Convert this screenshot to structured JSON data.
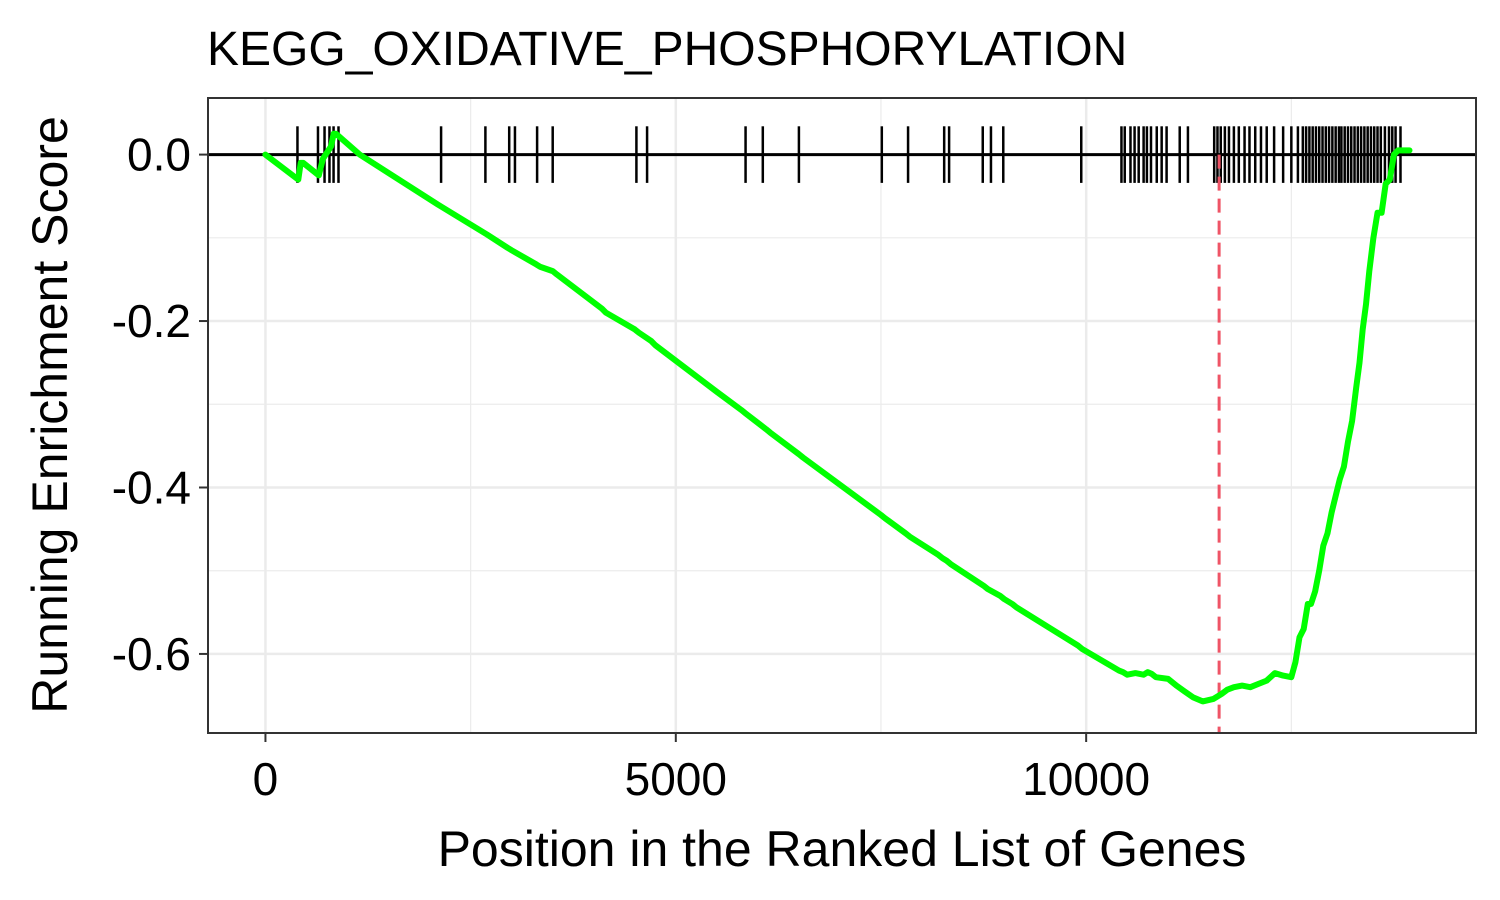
{
  "chart_data": {
    "type": "line",
    "title": "KEGG_OXIDATIVE_PHOSPHORYLATION",
    "xlabel": "Position in the Ranked List of Genes",
    "ylabel": "Running Enrichment Score",
    "xlim": [
      -700,
      14750
    ],
    "ylim": [
      -0.695,
      0.068
    ],
    "x_ticks": [
      0,
      5000,
      10000
    ],
    "x_tick_labels": [
      "0",
      "5000",
      "10000"
    ],
    "y_ticks": [
      0.0,
      -0.2,
      -0.4,
      -0.6
    ],
    "y_tick_labels": [
      "0.0",
      "-0.2",
      "-0.4",
      "-0.6"
    ],
    "grid": true,
    "colors": {
      "curve": "#00ff00",
      "hits": "#000000",
      "zero_line": "#000000",
      "peak_line": "#ef5466",
      "grid": "#ebebeb",
      "panel_border": "#333333"
    },
    "series": [
      {
        "x": [
          0,
          400,
          430,
          460,
          650,
          700,
          800,
          830,
          860,
          1150,
          2100,
          2150,
          2650,
          2700,
          2950,
          3000,
          3300,
          3350,
          3500,
          3550,
          4100,
          4150,
          4500,
          4550,
          4700,
          4750,
          5500,
          5800,
          5850,
          6100,
          6150,
          6500,
          6550,
          7500,
          7550,
          7800,
          7850,
          8200,
          8250,
          8300,
          8350,
          8750,
          8800,
          8950,
          9000,
          9100,
          9150,
          9900,
          9950,
          10400,
          10450,
          10500,
          10600,
          10700,
          10750,
          10800,
          10850,
          11000,
          11100,
          11200,
          11300,
          11420,
          11550,
          11650,
          11720,
          11800,
          11900,
          12000,
          12100,
          12200,
          12300,
          12400,
          12500,
          12550,
          12600,
          12650,
          12700,
          12740,
          12790,
          12840,
          12890,
          12940,
          12990,
          13040,
          13090,
          13140,
          13190,
          13240,
          13290,
          13330,
          13370,
          13410,
          13450,
          13500,
          13550,
          13600,
          13650,
          13700,
          13750,
          13800,
          13850,
          13900,
          13940
        ],
        "y": [
          0.0,
          -0.03,
          -0.01,
          -0.01,
          -0.025,
          -0.005,
          0.01,
          0.025,
          0.025,
          0.0,
          -0.06,
          -0.063,
          -0.093,
          -0.096,
          -0.112,
          -0.115,
          -0.132,
          -0.135,
          -0.14,
          -0.144,
          -0.185,
          -0.19,
          -0.21,
          -0.214,
          -0.224,
          -0.229,
          -0.285,
          -0.307,
          -0.311,
          -0.33,
          -0.334,
          -0.36,
          -0.364,
          -0.433,
          -0.437,
          -0.455,
          -0.459,
          -0.481,
          -0.485,
          -0.488,
          -0.492,
          -0.518,
          -0.522,
          -0.53,
          -0.534,
          -0.54,
          -0.544,
          -0.59,
          -0.594,
          -0.62,
          -0.622,
          -0.625,
          -0.623,
          -0.625,
          -0.622,
          -0.624,
          -0.628,
          -0.63,
          -0.638,
          -0.645,
          -0.652,
          -0.657,
          -0.654,
          -0.648,
          -0.643,
          -0.64,
          -0.638,
          -0.64,
          -0.636,
          -0.632,
          -0.623,
          -0.626,
          -0.628,
          -0.61,
          -0.58,
          -0.57,
          -0.54,
          -0.54,
          -0.525,
          -0.5,
          -0.47,
          -0.455,
          -0.43,
          -0.41,
          -0.39,
          -0.375,
          -0.345,
          -0.32,
          -0.28,
          -0.25,
          -0.21,
          -0.18,
          -0.14,
          -0.1,
          -0.07,
          -0.07,
          -0.035,
          -0.03,
          0.0,
          0.005,
          0.005,
          0.005,
          0.005
        ]
      }
    ],
    "hits": [
      390,
      640,
      720,
      780,
      830,
      890,
      2140,
      2680,
      2970,
      3040,
      3310,
      3500,
      4520,
      4650,
      5850,
      6060,
      6500,
      7510,
      7830,
      8270,
      8330,
      8740,
      8840,
      8990,
      9940,
      10430,
      10470,
      10540,
      10590,
      10640,
      10700,
      10740,
      10790,
      10860,
      10920,
      10980,
      11140,
      11240,
      11560,
      11600,
      11640,
      11690,
      11740,
      11800,
      11860,
      11930,
      11990,
      12060,
      12130,
      12200,
      12290,
      12400,
      12500,
      12580,
      12640,
      12680,
      12720,
      12760,
      12800,
      12840,
      12880,
      12920,
      12960,
      13000,
      13040,
      13080,
      13110,
      13150,
      13190,
      13230,
      13270,
      13310,
      13350,
      13390,
      13430,
      13470,
      13510,
      13550,
      13590,
      13640,
      13690,
      13730,
      13770,
      13830
    ],
    "peak_position": 11620
  }
}
